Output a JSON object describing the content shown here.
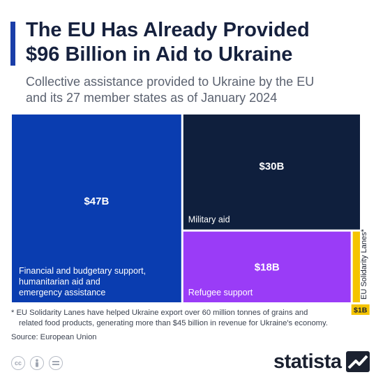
{
  "header": {
    "title_line1": "The EU Has Already Provided",
    "title_line2": "$96 Billion in Aid to Ukraine",
    "subtitle_line1": "Collective assistance provided to Ukraine by the EU",
    "subtitle_line2": "and its 27 member states as of January 2024"
  },
  "chart_data": {
    "type": "treemap",
    "unit": "$B",
    "items": [
      {
        "value_label": "$47B",
        "value": 47,
        "category_lines": [
          "Financial and budgetary support,",
          "humanitarian aid and",
          "emergency assistance"
        ],
        "color": "#0a3db0"
      },
      {
        "value_label": "$30B",
        "value": 30,
        "category_lines": [
          "Military aid"
        ],
        "color": "#0f1f3d"
      },
      {
        "value_label": "$18B",
        "value": 18,
        "category_lines": [
          "Refugee support"
        ],
        "color": "#9a3cf7"
      },
      {
        "value_label": "$1B",
        "value": 1,
        "category_lines": [
          "EU Solidarity Lanes*"
        ],
        "color": "#f5c400"
      }
    ]
  },
  "footer": {
    "footnote_line1": "* EU Solidarity Lanes have helped Ukraine export over 60 million tonnes of grains and",
    "footnote_line2": "related food products, generating more than $45 billion in revenue for Ukraine's economy.",
    "source": "Source: European Union",
    "brand": "statista"
  }
}
